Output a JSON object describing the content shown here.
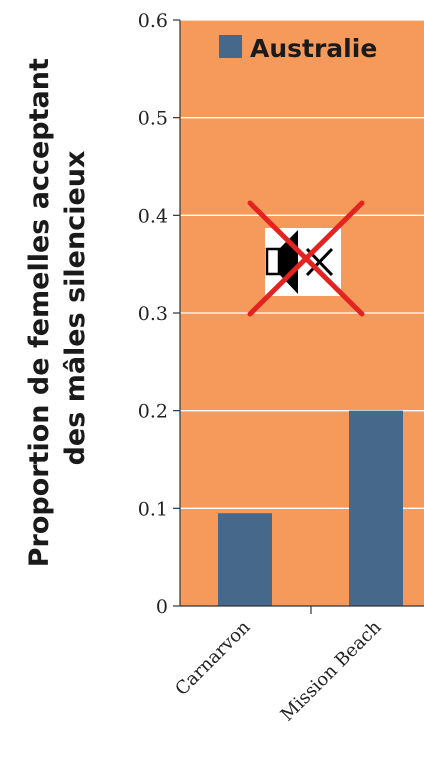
{
  "chart_data": {
    "type": "bar",
    "categories": [
      "Carnarvon",
      "Mission Beach"
    ],
    "series": [
      {
        "name": "Australie",
        "values": [
          0.095,
          0.2
        ]
      }
    ],
    "ylabel": "Proportion de femelles acceptant des mâles silencieux",
    "ylabel_lines": [
      "Proportion de femelles acceptant",
      "des mâles silencieux"
    ],
    "ylim": [
      0,
      0.6
    ],
    "yticks": [
      "0",
      "0.1",
      "0.2",
      "0.3",
      "0.4",
      "0.5",
      "0.6"
    ],
    "grid": true,
    "legend": "top-left",
    "colors": {
      "background": "#F59A5A",
      "bar": "#46688A",
      "grid": "#ffffff",
      "cross": "#E3231F"
    }
  },
  "overlay": {
    "icon": "muted-speaker-icon"
  }
}
